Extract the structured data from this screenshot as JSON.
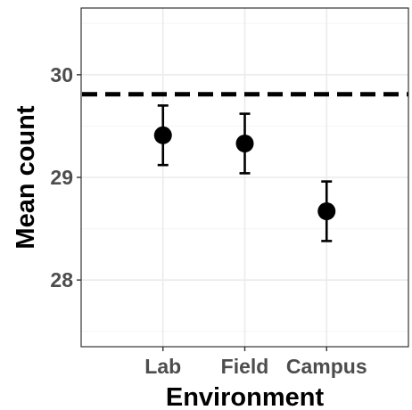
{
  "chart_data": {
    "type": "scatter",
    "title": "",
    "xlabel": "Environment",
    "ylabel": "Mean count",
    "categories": [
      "Lab",
      "Field",
      "Campus"
    ],
    "series": [
      {
        "values": [
          29.41,
          29.33,
          28.67
        ],
        "error_low": [
          29.12,
          29.04,
          28.38
        ],
        "error_high": [
          29.7,
          29.62,
          28.96
        ]
      }
    ],
    "reference_line": {
      "y": 29.81,
      "style": "dashed"
    },
    "yticks": [
      28,
      29,
      30
    ],
    "ylim": [
      27.35,
      30.65
    ],
    "grid": true,
    "colors": {
      "points": "#000000",
      "grid_major": "#ebebeb",
      "grid_minor": "#f5f5f5",
      "panel_border": "#333333",
      "tick_text": "#4d4d4d"
    }
  }
}
